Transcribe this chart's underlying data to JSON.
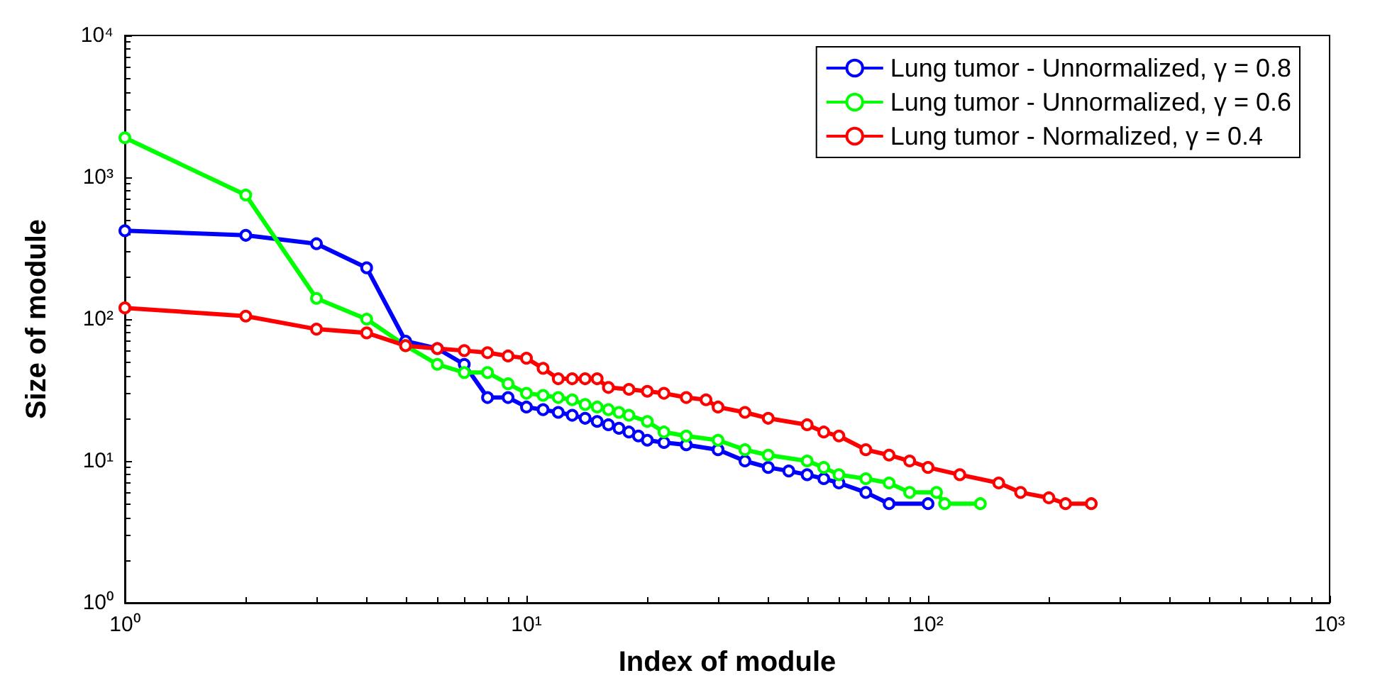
{
  "chart_data": {
    "type": "line",
    "xlabel": "Index of module",
    "ylabel": "Size of module",
    "log": "xy",
    "grid": false,
    "legend": "top right",
    "marker": "circle",
    "line_style": "solid",
    "xlim": [
      1,
      1000
    ],
    "xticks": [
      {
        "value": 1,
        "label": "10⁰"
      },
      {
        "value": 10,
        "label": "10¹"
      },
      {
        "value": 100,
        "label": "10²"
      },
      {
        "value": 1000,
        "label": "10³"
      }
    ],
    "ylim": [
      1,
      10000
    ],
    "yticks": [
      {
        "value": 1,
        "label": "10⁰"
      },
      {
        "value": 10,
        "label": "10¹"
      },
      {
        "value": 100,
        "label": "10²"
      },
      {
        "value": 1000,
        "label": "10³"
      },
      {
        "value": 10000,
        "label": "10⁴"
      }
    ],
    "series": [
      {
        "name": "Lung tumor - Unnormalized, γ = 0.8",
        "color": "#0000ff",
        "x": [
          1,
          2,
          3,
          4,
          5,
          6,
          7,
          8,
          9,
          10,
          11,
          12,
          13,
          14,
          15,
          16,
          17,
          18,
          19,
          20,
          22,
          25,
          30,
          35,
          40,
          45,
          50,
          55,
          60,
          70,
          80,
          100
        ],
        "values": [
          420,
          390,
          340,
          230,
          70,
          62,
          48,
          28,
          28,
          24,
          23,
          22,
          21,
          20,
          19,
          18,
          17,
          16,
          15,
          14,
          13.5,
          13,
          12,
          10,
          9,
          8.5,
          8,
          7.5,
          7,
          6,
          5,
          5
        ]
      },
      {
        "name": "Lung tumor - Unnormalized, γ = 0.6",
        "color": "#00ff00",
        "x": [
          1,
          2,
          3,
          4,
          5,
          6,
          7,
          8,
          9,
          10,
          11,
          12,
          13,
          14,
          15,
          16,
          17,
          18,
          20,
          22,
          25,
          30,
          35,
          40,
          50,
          55,
          60,
          70,
          80,
          90,
          105,
          110,
          135
        ],
        "values": [
          1900,
          750,
          140,
          100,
          65,
          48,
          42,
          42,
          35,
          30,
          29,
          28,
          27,
          25,
          24,
          23,
          22,
          21,
          19,
          16,
          15,
          14,
          12,
          11,
          10,
          9,
          8,
          7.5,
          7,
          6,
          6,
          5,
          5
        ]
      },
      {
        "name": "Lung tumor - Normalized, γ = 0.4",
        "color": "#ff0000",
        "x": [
          1,
          2,
          3,
          4,
          5,
          6,
          7,
          8,
          9,
          10,
          11,
          12,
          13,
          14,
          15,
          16,
          18,
          20,
          22,
          25,
          28,
          30,
          35,
          40,
          50,
          55,
          60,
          70,
          80,
          90,
          100,
          120,
          150,
          170,
          200,
          220,
          255
        ],
        "values": [
          120,
          105,
          85,
          80,
          65,
          62,
          60,
          58,
          55,
          53,
          45,
          38,
          38,
          38,
          38,
          33,
          32,
          31,
          30,
          28,
          27,
          24,
          22,
          20,
          18,
          16,
          15,
          12,
          11,
          10,
          9,
          8,
          7,
          6,
          5.5,
          5,
          5
        ]
      }
    ]
  }
}
